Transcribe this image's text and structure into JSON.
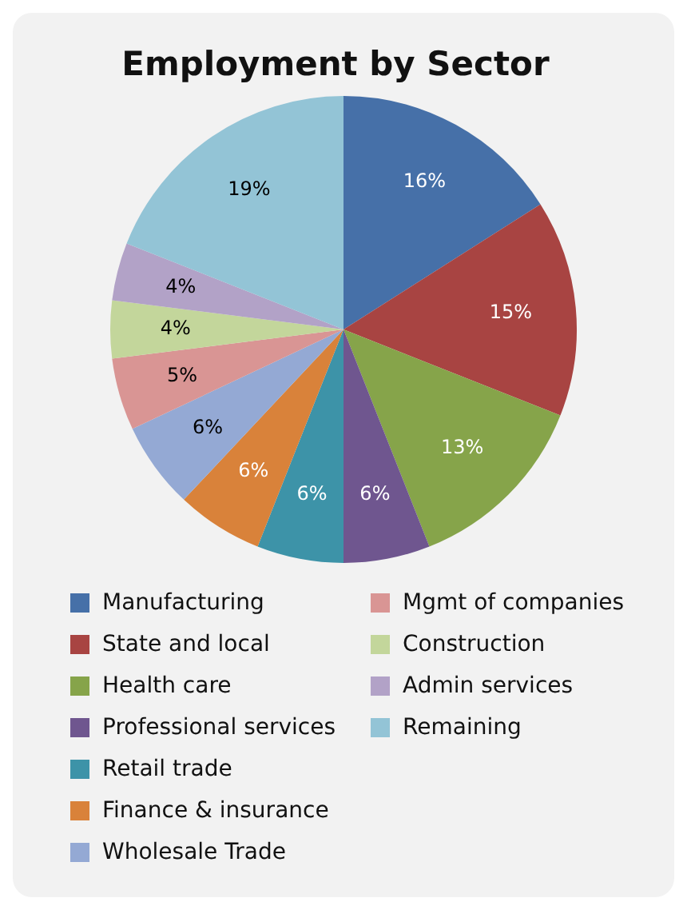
{
  "chart_data": {
    "type": "pie",
    "title": "Employment by Sector",
    "categories": [
      "Manufacturing",
      "State and local",
      "Health care",
      "Professional services",
      "Retail trade",
      "Finance & insurance",
      "Wholesale Trade",
      "Mgmt of companies",
      "Construction",
      "Admin services",
      "Remaining"
    ],
    "values": [
      16,
      15,
      13,
      6,
      6,
      6,
      6,
      5,
      4,
      4,
      19
    ],
    "value_labels": [
      "16%",
      "15%",
      "13%",
      "6%",
      "6%",
      "6%",
      "6%",
      "5%",
      "4%",
      "4%",
      "19%"
    ],
    "colors": [
      "#4670a8",
      "#a84442",
      "#86a44a",
      "#6f568f",
      "#3d93a8",
      "#d9823a",
      "#94a9d4",
      "#d99594",
      "#c3d69b",
      "#b2a2c7",
      "#93c4d6"
    ],
    "legend": "bottom"
  }
}
